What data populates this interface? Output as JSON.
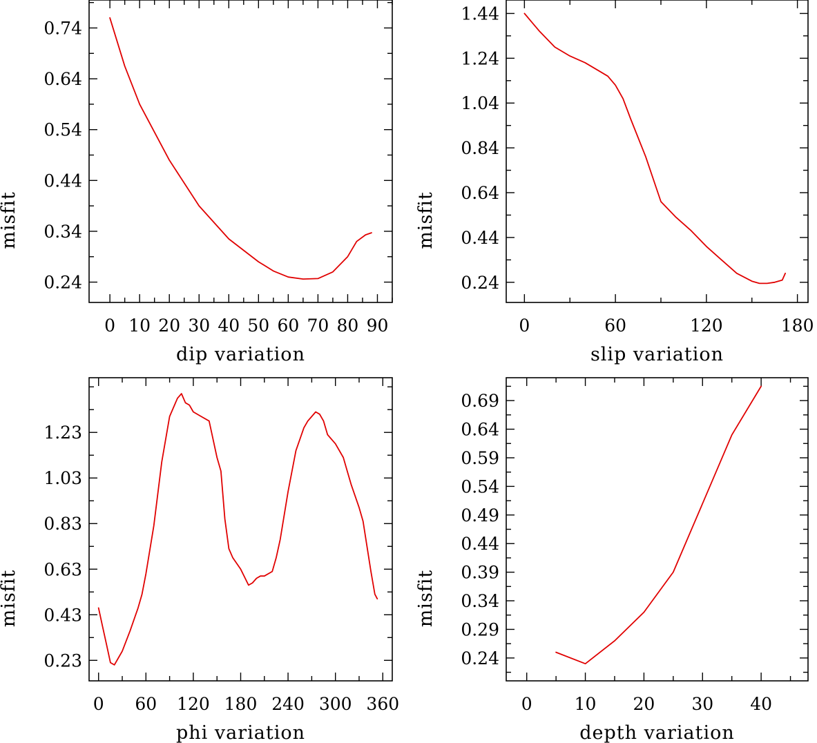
{
  "colors": {
    "line": "#e00000",
    "axis": "#000000",
    "background": "#ffffff"
  },
  "chart_data": [
    {
      "type": "line",
      "xlabel": "dip    variation",
      "ylabel": "misfit",
      "xlim": [
        -7,
        95
      ],
      "ylim": [
        0.2,
        0.795
      ],
      "x_tick_labels": [
        "0",
        "10",
        "20",
        "30",
        "40",
        "50",
        "60",
        "70",
        "80",
        "90"
      ],
      "x_tick_values": [
        0,
        10,
        20,
        30,
        40,
        50,
        60,
        70,
        80,
        90
      ],
      "y_tick_labels": [
        "0.24",
        "0.34",
        "0.44",
        "0.54",
        "0.64",
        "0.74"
      ],
      "y_tick_values": [
        0.24,
        0.34,
        0.44,
        0.54,
        0.64,
        0.74
      ],
      "grid": false,
      "series": [
        {
          "x": [
            0,
            5,
            10,
            20,
            30,
            40,
            50,
            55,
            60,
            65,
            70,
            75,
            80,
            83,
            86,
            88
          ],
          "y": [
            0.76,
            0.665,
            0.59,
            0.48,
            0.39,
            0.325,
            0.28,
            0.262,
            0.25,
            0.246,
            0.247,
            0.26,
            0.29,
            0.32,
            0.333,
            0.337
          ]
        }
      ]
    },
    {
      "type": "line",
      "xlabel": "slip   variation",
      "ylabel": "misfit",
      "xlim": [
        -12,
        187
      ],
      "ylim": [
        0.15,
        1.5
      ],
      "x_tick_labels": [
        "0",
        "60",
        "120",
        "180"
      ],
      "x_tick_values": [
        0,
        60,
        120,
        180
      ],
      "y_tick_labels": [
        "0.24",
        "0.44",
        "0.64",
        "0.84",
        "1.04",
        "1.24",
        "1.44"
      ],
      "y_tick_values": [
        0.24,
        0.44,
        0.64,
        0.84,
        1.04,
        1.24,
        1.44
      ],
      "grid": false,
      "series": [
        {
          "x": [
            0,
            5,
            10,
            20,
            30,
            40,
            50,
            55,
            60,
            65,
            70,
            80,
            90,
            100,
            110,
            120,
            130,
            140,
            150,
            155,
            160,
            165,
            170,
            172
          ],
          "y": [
            1.44,
            1.4,
            1.36,
            1.29,
            1.25,
            1.22,
            1.18,
            1.16,
            1.12,
            1.06,
            0.97,
            0.8,
            0.6,
            0.53,
            0.47,
            0.4,
            0.34,
            0.28,
            0.245,
            0.235,
            0.235,
            0.24,
            0.25,
            0.28
          ]
        }
      ]
    },
    {
      "type": "line",
      "xlabel": "phi    variation",
      "ylabel": "misfit",
      "xlim": [
        -12,
        372
      ],
      "ylim": [
        0.14,
        1.47
      ],
      "x_tick_labels": [
        "0",
        "60",
        "120",
        "180",
        "240",
        "300",
        "360"
      ],
      "x_tick_values": [
        0,
        60,
        120,
        180,
        240,
        300,
        360
      ],
      "y_tick_labels": [
        "0.23",
        "0.43",
        "0.63",
        "0.83",
        "1.03",
        "1.23"
      ],
      "y_tick_values": [
        0.23,
        0.43,
        0.63,
        0.83,
        1.03,
        1.23
      ],
      "grid": false,
      "series": [
        {
          "x": [
            0,
            5,
            10,
            15,
            20,
            25,
            30,
            40,
            50,
            55,
            60,
            70,
            80,
            90,
            95,
            100,
            105,
            110,
            115,
            120,
            130,
            140,
            150,
            155,
            160,
            165,
            170,
            180,
            190,
            195,
            200,
            205,
            210,
            220,
            225,
            230,
            240,
            250,
            260,
            265,
            270,
            275,
            280,
            285,
            290,
            300,
            310,
            315,
            320,
            330,
            335,
            340,
            345,
            350,
            353
          ],
          "y": [
            0.46,
            0.38,
            0.3,
            0.22,
            0.21,
            0.24,
            0.27,
            0.36,
            0.46,
            0.52,
            0.61,
            0.82,
            1.1,
            1.3,
            1.34,
            1.38,
            1.4,
            1.36,
            1.35,
            1.32,
            1.3,
            1.28,
            1.12,
            1.06,
            0.85,
            0.72,
            0.68,
            0.63,
            0.56,
            0.57,
            0.59,
            0.6,
            0.6,
            0.62,
            0.68,
            0.76,
            0.97,
            1.15,
            1.25,
            1.28,
            1.3,
            1.32,
            1.31,
            1.28,
            1.22,
            1.18,
            1.12,
            1.06,
            1.0,
            0.9,
            0.84,
            0.73,
            0.62,
            0.52,
            0.5
          ]
        }
      ]
    },
    {
      "type": "line",
      "xlabel": "depth  variation",
      "ylabel": "misfit",
      "xlim": [
        -3.5,
        48
      ],
      "ylim": [
        0.2,
        0.73
      ],
      "x_tick_labels": [
        "0",
        "10",
        "20",
        "30",
        "40"
      ],
      "x_tick_values": [
        0,
        10,
        20,
        30,
        40
      ],
      "y_tick_labels": [
        "0.24",
        "0.29",
        "0.34",
        "0.39",
        "0.44",
        "0.49",
        "0.54",
        "0.59",
        "0.64",
        "0.69"
      ],
      "y_tick_values": [
        0.24,
        0.29,
        0.34,
        0.39,
        0.44,
        0.49,
        0.54,
        0.59,
        0.64,
        0.69
      ],
      "grid": false,
      "series": [
        {
          "x": [
            5,
            10,
            15,
            20,
            25,
            30,
            35,
            40
          ],
          "y": [
            0.25,
            0.23,
            0.27,
            0.32,
            0.39,
            0.51,
            0.63,
            0.715
          ]
        }
      ]
    }
  ]
}
